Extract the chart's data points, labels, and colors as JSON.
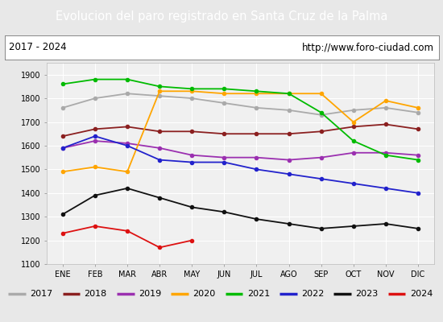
{
  "title": "Evolucion del paro registrado en Santa Cruz de la Palma",
  "title_bg": "#4e86c8",
  "subtitle_left": "2017 - 2024",
  "subtitle_right": "http://www.foro-ciudad.com",
  "months": [
    "ENE",
    "FEB",
    "MAR",
    "ABR",
    "MAY",
    "JUN",
    "JUL",
    "AGO",
    "SEP",
    "OCT",
    "NOV",
    "DIC"
  ],
  "ylim": [
    1100,
    1950
  ],
  "yticks": [
    1100,
    1200,
    1300,
    1400,
    1500,
    1600,
    1700,
    1800,
    1900
  ],
  "series": {
    "2017": {
      "color": "#aaaaaa",
      "values": [
        1760,
        1800,
        1820,
        1810,
        1800,
        1780,
        1760,
        1750,
        1730,
        1750,
        1760,
        1740
      ]
    },
    "2018": {
      "color": "#8b2020",
      "values": [
        1640,
        1670,
        1680,
        1660,
        1660,
        1650,
        1650,
        1650,
        1660,
        1680,
        1690,
        1670
      ]
    },
    "2019": {
      "color": "#9b30b0",
      "values": [
        1590,
        1620,
        1610,
        1590,
        1560,
        1550,
        1550,
        1540,
        1550,
        1570,
        1570,
        1560
      ]
    },
    "2020": {
      "color": "#ffa500",
      "values": [
        1490,
        1510,
        1490,
        1830,
        1830,
        1820,
        1820,
        1820,
        1820,
        1700,
        1790,
        1760
      ]
    },
    "2021": {
      "color": "#00bb00",
      "values": [
        1860,
        1880,
        1880,
        1850,
        1840,
        1840,
        1830,
        1820,
        1740,
        1620,
        1560,
        1540
      ]
    },
    "2022": {
      "color": "#2222cc",
      "values": [
        1590,
        1640,
        1600,
        1540,
        1530,
        1530,
        1500,
        1480,
        1460,
        1440,
        1420,
        1400
      ]
    },
    "2023": {
      "color": "#111111",
      "values": [
        1310,
        1390,
        1420,
        1380,
        1340,
        1320,
        1290,
        1270,
        1250,
        1260,
        1270,
        1250
      ]
    },
    "2024": {
      "color": "#dd1111",
      "values": [
        1230,
        1260,
        1240,
        1170,
        1200,
        null,
        null,
        null,
        null,
        null,
        null,
        null
      ]
    }
  },
  "legend_order": [
    "2017",
    "2018",
    "2019",
    "2020",
    "2021",
    "2022",
    "2023",
    "2024"
  ],
  "bg_color": "#e8e8e8",
  "plot_bg": "#f0f0f0",
  "title_fontsize": 10.5,
  "tick_fontsize": 7,
  "legend_fontsize": 8
}
